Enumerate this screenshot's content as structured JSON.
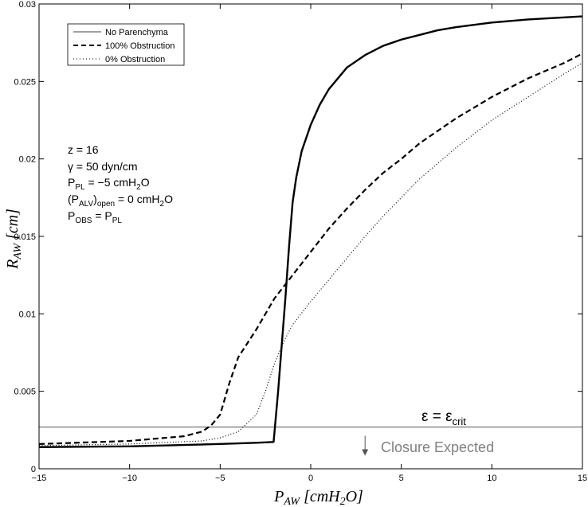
{
  "chart_data": {
    "type": "line",
    "title": "",
    "xlabel": "P_AW [cmH2O]",
    "ylabel": "R_AW [cm]",
    "xlim": [
      -15,
      15
    ],
    "ylim": [
      0,
      0.03
    ],
    "xticks": [
      -15,
      -10,
      -5,
      0,
      5,
      10,
      15
    ],
    "xtick_labels": [
      "−15",
      "−10",
      "−5",
      "0",
      "5",
      "10",
      "15"
    ],
    "yticks": [
      0,
      0.005,
      0.01,
      0.015,
      0.02,
      0.025,
      0.03
    ],
    "ytick_labels": [
      "0",
      "0.005",
      "0.01",
      "0.015",
      "0.02",
      "0.025",
      "0.03"
    ],
    "legend_position": "top-left",
    "series": [
      {
        "name": "No Parenchyma",
        "style": "solid",
        "legend_style": "thin",
        "color": "#000000",
        "x": [
          -15,
          -10,
          -5,
          -3,
          -2.05,
          -1.8,
          -1.6,
          -1.4,
          -1.2,
          -1.0,
          -0.8,
          -0.5,
          0,
          0.5,
          1,
          2,
          3,
          4,
          5,
          6,
          7,
          8,
          10,
          12,
          15
        ],
        "y": [
          0.0014,
          0.00145,
          0.0016,
          0.00168,
          0.00173,
          0.005,
          0.008,
          0.011,
          0.0143,
          0.0172,
          0.0188,
          0.0205,
          0.0222,
          0.0235,
          0.0245,
          0.0259,
          0.0267,
          0.0273,
          0.0277,
          0.028,
          0.0283,
          0.0285,
          0.0288,
          0.029,
          0.0292
        ]
      },
      {
        "name": "100% Obstruction",
        "style": "dashed",
        "color": "#000000",
        "x": [
          -15,
          -10,
          -7,
          -6,
          -5.5,
          -5,
          -4.5,
          -4,
          -3,
          -2,
          -1,
          0,
          1,
          2,
          3,
          4,
          5,
          6,
          8,
          10,
          12,
          14,
          15
        ],
        "y": [
          0.0016,
          0.0018,
          0.0021,
          0.0024,
          0.0028,
          0.0035,
          0.0055,
          0.0072,
          0.009,
          0.011,
          0.0125,
          0.014,
          0.0155,
          0.0168,
          0.018,
          0.0191,
          0.02,
          0.021,
          0.0226,
          0.024,
          0.0252,
          0.0262,
          0.0268
        ]
      },
      {
        "name": "0% Obstruction",
        "style": "dotted",
        "color": "#000000",
        "x": [
          -15,
          -10,
          -6,
          -5,
          -4,
          -3,
          -2.5,
          -2,
          -1.5,
          -1,
          0,
          1,
          2,
          3,
          4,
          5,
          6,
          8,
          10,
          12,
          14,
          15
        ],
        "y": [
          0.0015,
          0.0016,
          0.0018,
          0.002,
          0.0024,
          0.0035,
          0.005,
          0.0068,
          0.0082,
          0.0093,
          0.0108,
          0.0122,
          0.0136,
          0.015,
          0.0163,
          0.0175,
          0.0187,
          0.0207,
          0.0225,
          0.024,
          0.0255,
          0.0262
        ]
      }
    ],
    "threshold": {
      "y": 0.0027,
      "color": "#555555",
      "label": "ε = ε_crit"
    },
    "annotation": {
      "text": "Closure Expected",
      "color": "#808080",
      "arrow_x": 3.0
    },
    "parameters": [
      "z = 16",
      "γ = 50 dyn/cm",
      "P_PL = −5 cmH2O",
      "(P_ALV)_open = 0 cmH2O",
      "P_OBS = P_PL"
    ]
  }
}
